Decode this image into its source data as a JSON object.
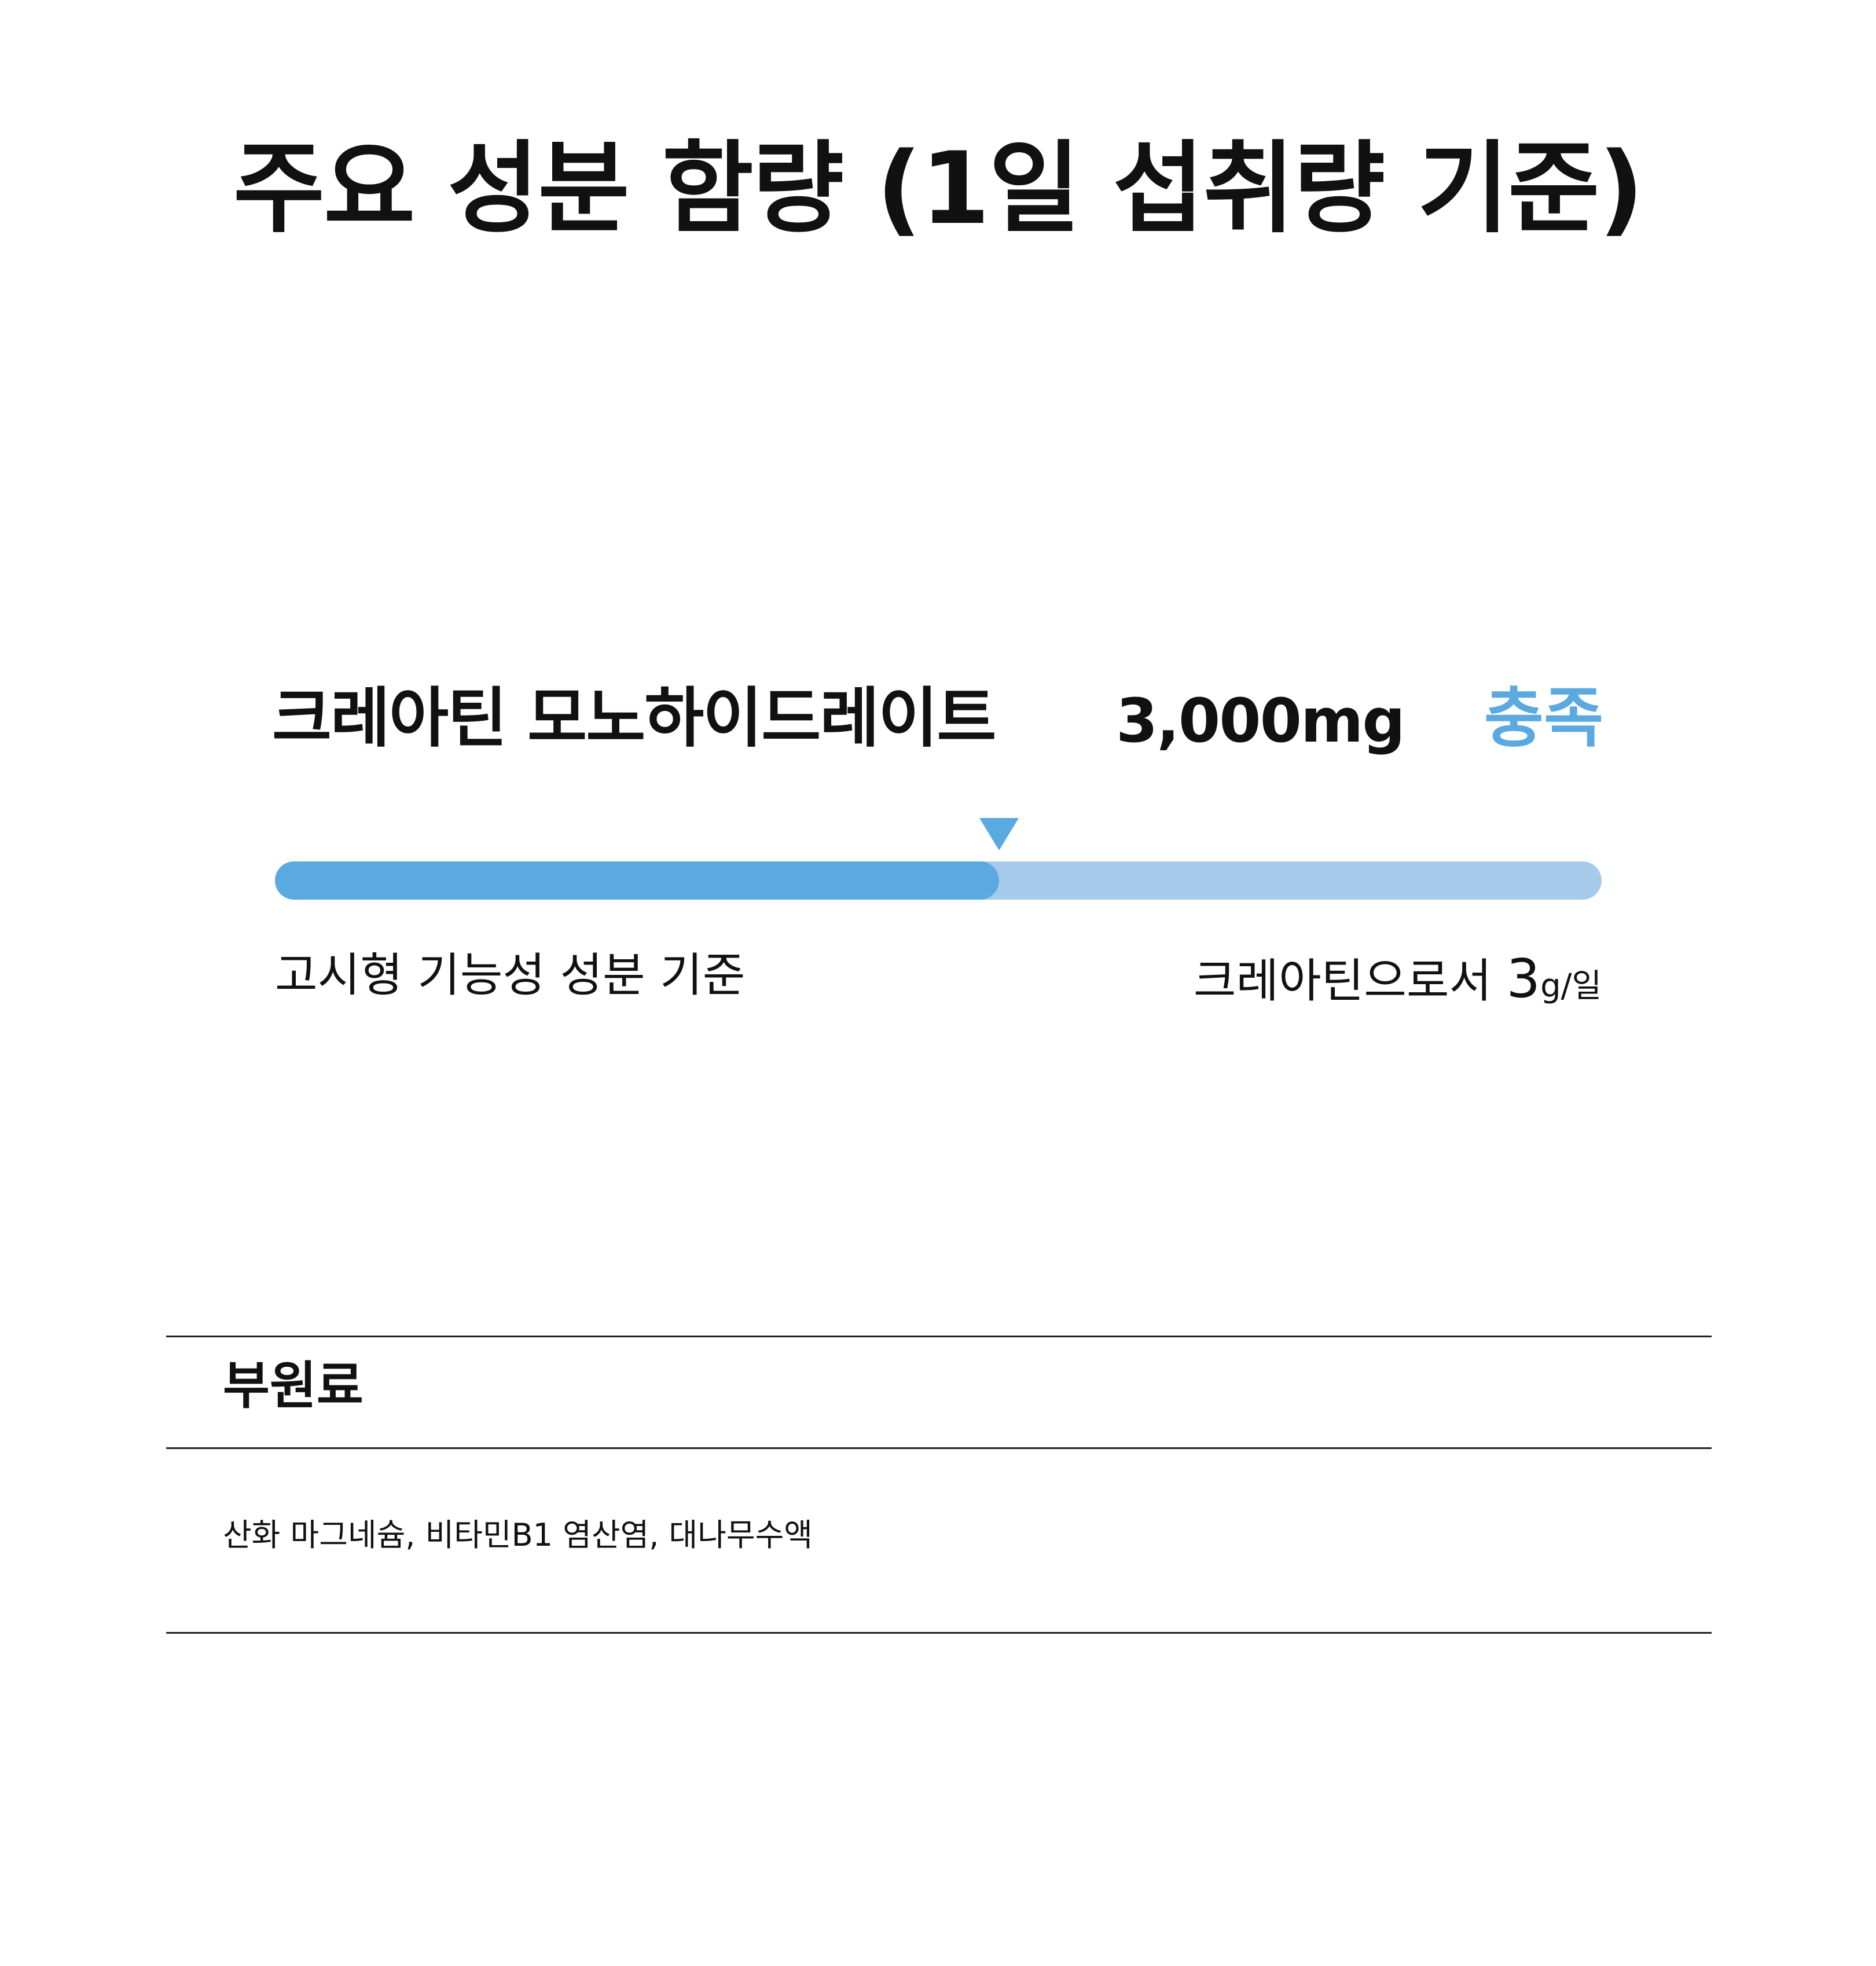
{
  "title": "주요 성분 함량 (1일 섭취량 기준)",
  "ingredient": {
    "name": "크레아틴 모노하이드레이트",
    "amount": "3,000mg",
    "status": "충족",
    "level_percent": 54.6,
    "standard_label": "고시형 기능성 성분 기준",
    "standard_value_prefix": "크레아틴으로서 ",
    "standard_value_number": "3",
    "standard_value_unit": "g/일"
  },
  "sub_ingredients": {
    "title": "부원료",
    "items": "산화 마그네슘, 비타민B1 염산염, 대나무수액"
  },
  "colors": {
    "accent": "#5aa9e0",
    "track": "#a6cbea",
    "text": "#111111",
    "rule": "#222222",
    "background": "#ffffff"
  }
}
